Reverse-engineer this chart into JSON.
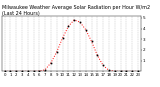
{
  "title": "Milwaukee Weather Average Solar Radiation per Hour W/m2 (Last 24 Hours)",
  "hours": [
    0,
    1,
    2,
    3,
    4,
    5,
    6,
    7,
    8,
    9,
    10,
    11,
    12,
    13,
    14,
    15,
    16,
    17,
    18,
    19,
    20,
    21,
    22,
    23
  ],
  "values": [
    0,
    0,
    0,
    0,
    0,
    0,
    2,
    15,
    80,
    180,
    310,
    420,
    480,
    460,
    390,
    280,
    150,
    55,
    10,
    1,
    0,
    0,
    0,
    0
  ],
  "line_color": "red",
  "marker_color": "black",
  "bg_color": "white",
  "grid_color": "#bbbbbb",
  "ylim": [
    0,
    520
  ],
  "ytick_values": [
    100,
    200,
    300,
    400,
    500
  ],
  "ytick_labels": [
    "1",
    "2",
    "3",
    "4",
    "5"
  ],
  "ylabel_fontsize": 3.0,
  "xlabel_fontsize": 2.8,
  "title_fontsize": 3.5,
  "dpi": 100,
  "figsize": [
    1.6,
    0.87
  ]
}
